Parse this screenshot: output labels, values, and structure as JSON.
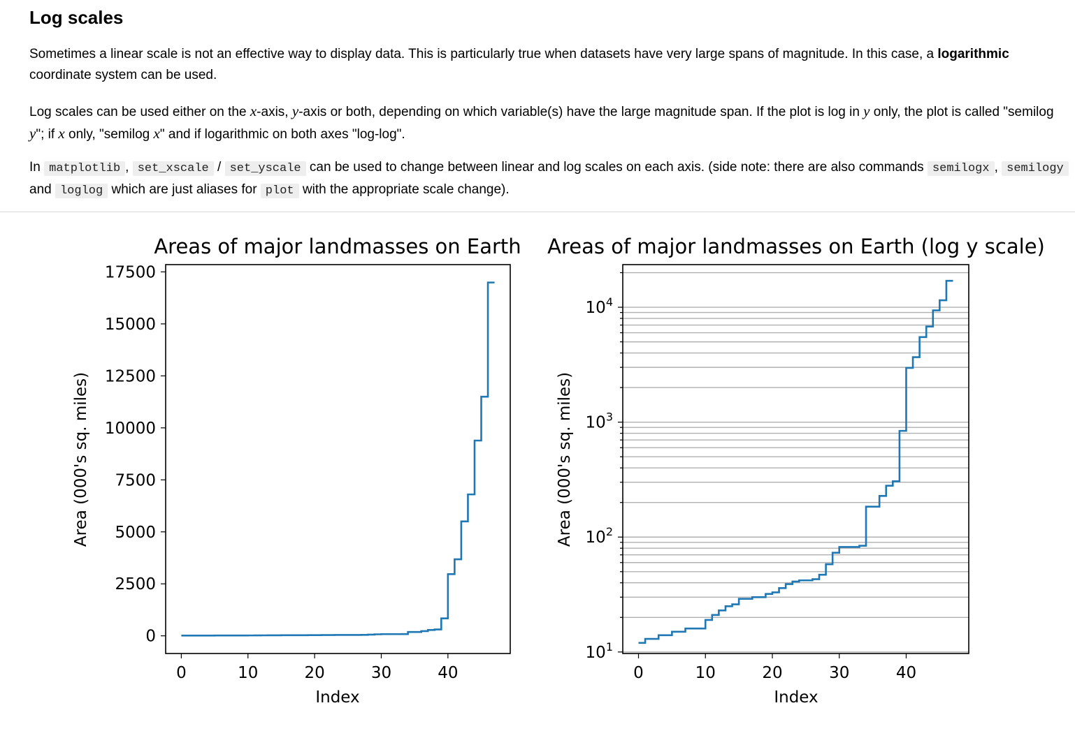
{
  "section": {
    "heading": "Log scales",
    "para1": {
      "t1": "Sometimes a linear scale is not an effective way to display data. This is particularly true when datasets have very large spans of magnitude. In this case, a ",
      "bold": "logarithmic",
      "t2": " coordinate system can be used."
    },
    "para2": {
      "t1": "Log scales can be used either on the ",
      "v1": "x",
      "t2": "-axis, ",
      "v2": "y",
      "t3": "-axis or both, depending on which variable(s) have the large magnitude span. If the plot is log in ",
      "v3": "y",
      "t4": " only, the plot is called \"semilog ",
      "v4": "y",
      "t5": "\"; if ",
      "v5": "x",
      "t6": " only, \"semilog ",
      "v6": "x",
      "t7": "\" and if logarithmic on both axes \"log-log\"."
    },
    "para3": {
      "t1": "In ",
      "c1": "matplotlib",
      "t2": ", ",
      "c2": "set_xscale",
      "t3": " / ",
      "c3": "set_yscale",
      "t4": " can be used to change between linear and log scales on each axis. (side note: there are also commands ",
      "c4": "semilogx",
      "t5": ", ",
      "c5": "semilogy",
      "t6": " and ",
      "c6": "loglog",
      "t7": " which are just aliases for ",
      "c7": "plot",
      "t8": " with the appropriate scale change)."
    }
  },
  "chart_data": [
    {
      "type": "line",
      "step": "post",
      "title": "Areas of major landmasses on Earth",
      "xlabel": "Index",
      "ylabel": "Area (000's sq. miles)",
      "yscale": "linear",
      "xlim": [
        -2.35,
        49.35
      ],
      "ylim": [
        -850,
        17850
      ],
      "xticks": [
        0,
        10,
        20,
        30,
        40
      ],
      "yticks": [
        0,
        2500,
        5000,
        7500,
        10000,
        12500,
        15000,
        17500
      ],
      "grid": false,
      "color": "#1f77b4"
    },
    {
      "type": "line",
      "step": "post",
      "title": "Areas of major landmasses on Earth (log y scale)",
      "xlabel": "Index",
      "ylabel": "Area (000's sq. miles)",
      "yscale": "log",
      "xlim": [
        -2.35,
        49.35
      ],
      "ylim": [
        9.7,
        23500
      ],
      "xticks": [
        0,
        10,
        20,
        30,
        40
      ],
      "yticks": [
        10,
        100,
        1000,
        10000
      ],
      "yticklabels": [
        {
          "base": "10",
          "exp": "1"
        },
        {
          "base": "10",
          "exp": "2"
        },
        {
          "base": "10",
          "exp": "3"
        },
        {
          "base": "10",
          "exp": "4"
        }
      ],
      "grid": "y major and minor",
      "color": "#1f77b4"
    }
  ],
  "series": {
    "name": "",
    "x": [
      0,
      1,
      2,
      3,
      4,
      5,
      6,
      7,
      8,
      9,
      10,
      11,
      12,
      13,
      14,
      15,
      16,
      17,
      18,
      19,
      20,
      21,
      22,
      23,
      24,
      25,
      26,
      27,
      28,
      29,
      30,
      31,
      32,
      33,
      34,
      35,
      36,
      37,
      38,
      39,
      40,
      41,
      42,
      43,
      44,
      45,
      46,
      47
    ],
    "y": [
      12,
      13,
      13,
      14,
      14,
      15,
      15,
      16,
      16,
      16,
      19,
      21,
      23,
      25,
      26,
      29,
      29,
      30,
      30,
      32,
      33,
      36,
      39,
      41,
      42,
      42,
      43,
      47,
      58,
      73,
      82,
      82,
      82,
      84,
      184,
      184,
      228,
      280,
      306,
      840,
      2968,
      3680,
      5500,
      6800,
      9390,
      11500,
      16990,
      16990
    ]
  }
}
